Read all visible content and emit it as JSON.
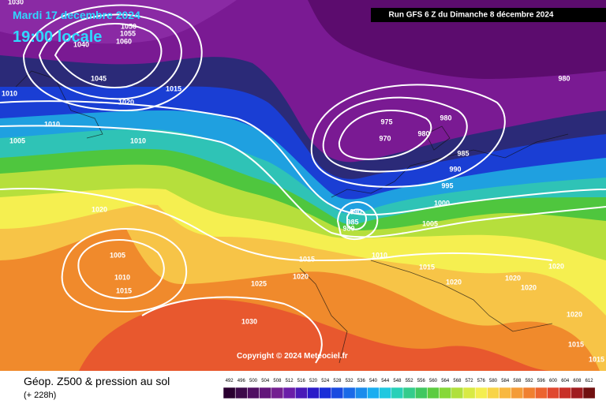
{
  "header": {
    "date": "Mardi 17 decembre 2024",
    "time": "19:00 locale",
    "run": "Run GFS 6 Z du Dimanche 8 décembre 2024"
  },
  "isobar_labels": [
    "1030",
    "1050",
    "1055",
    "1060",
    "1040",
    "1045",
    "1020",
    "1015",
    "1010",
    "1010",
    "1005",
    "1010",
    "975",
    "980",
    "970",
    "980",
    "980",
    "985",
    "990",
    "995",
    "1000",
    "1005",
    "990",
    "985",
    "980",
    "1010",
    "1015",
    "1015",
    "1020",
    "1005",
    "1010",
    "1015",
    "1025",
    "1020",
    "1020",
    "1020",
    "1020",
    "1020",
    "1020",
    "1030",
    "1015",
    "1015"
  ],
  "copyright": "Copyright © 2024 Meteociel.fr",
  "legend": {
    "title": "Géop. Z500 & pression au sol",
    "subtitle": "(+ 228h)",
    "scale": [
      "492",
      "496",
      "500",
      "504",
      "508",
      "512",
      "516",
      "520",
      "524",
      "528",
      "532",
      "536",
      "540",
      "544",
      "548",
      "552",
      "556",
      "560",
      "564",
      "568",
      "572",
      "576",
      "580",
      "584",
      "588",
      "592",
      "596",
      "600",
      "604",
      "608",
      "612"
    ]
  }
}
